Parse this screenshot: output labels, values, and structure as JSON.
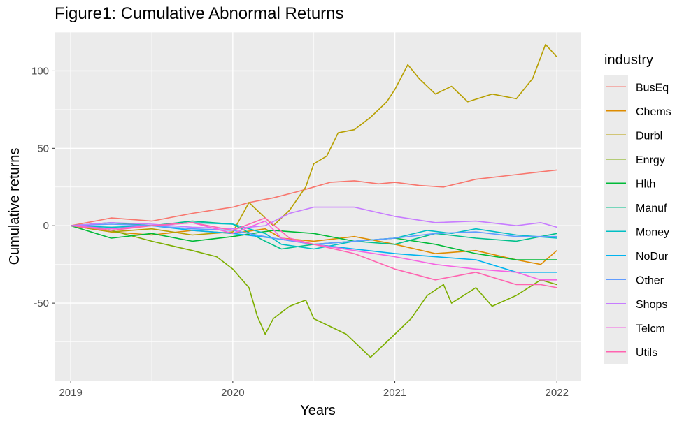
{
  "chart_data": {
    "type": "line",
    "title": "Figure1: Cumulative Abnormal Returns",
    "xlabel": "Years",
    "ylabel": "Cumulative returns",
    "xlim": [
      2018.9,
      2022.15
    ],
    "ylim": [
      -100,
      125
    ],
    "x_ticks": [
      2019,
      2020,
      2021,
      2022
    ],
    "x_tick_labels": [
      "2019",
      "2020",
      "2021",
      "2022"
    ],
    "y_ticks": [
      -50,
      0,
      50,
      100
    ],
    "y_tick_labels": [
      "-50",
      "0",
      "50",
      "100"
    ],
    "grid": true,
    "legend": {
      "title": "industry",
      "position": "right"
    },
    "background": "#ebebeb",
    "series": [
      {
        "name": "BusEq",
        "color": "#f8766d",
        "x": [
          2019,
          2019.25,
          2019.5,
          2019.75,
          2020,
          2020.1,
          2020.25,
          2020.4,
          2020.5,
          2020.6,
          2020.75,
          2020.9,
          2021,
          2021.15,
          2021.3,
          2021.5,
          2021.75,
          2022
        ],
        "y": [
          0,
          5,
          3,
          8,
          12,
          15,
          18,
          22,
          25,
          28,
          29,
          27,
          28,
          26,
          25,
          30,
          33,
          36
        ]
      },
      {
        "name": "Chems",
        "color": "#de8c00",
        "x": [
          2019,
          2019.25,
          2019.5,
          2019.75,
          2020,
          2020.2,
          2020.3,
          2020.5,
          2020.75,
          2021,
          2021.25,
          2021.5,
          2021.75,
          2021.9,
          2022
        ],
        "y": [
          0,
          -4,
          -6,
          -3,
          -5,
          -2,
          -8,
          -10,
          -7,
          -12,
          -18,
          -16,
          -22,
          -25,
          -16
        ]
      },
      {
        "name": "Durbl",
        "color": "#b79f00",
        "x": [
          2019,
          2019.25,
          2019.5,
          2019.75,
          2020,
          2020.1,
          2020.2,
          2020.25,
          2020.35,
          2020.45,
          2020.5,
          2020.58,
          2020.65,
          2020.75,
          2020.85,
          2020.95,
          2021,
          2021.08,
          2021.15,
          2021.25,
          2021.35,
          2021.45,
          2021.6,
          2021.75,
          2021.85,
          2021.93,
          2022
        ],
        "y": [
          0,
          -4,
          -2,
          -6,
          -4,
          15,
          5,
          0,
          10,
          25,
          40,
          45,
          60,
          62,
          70,
          80,
          88,
          104,
          95,
          85,
          90,
          80,
          85,
          82,
          95,
          117,
          109
        ]
      },
      {
        "name": "Enrgy",
        "color": "#7cae00",
        "x": [
          2019,
          2019.25,
          2019.5,
          2019.75,
          2019.9,
          2020,
          2020.1,
          2020.15,
          2020.2,
          2020.25,
          2020.35,
          2020.45,
          2020.5,
          2020.6,
          2020.7,
          2020.85,
          2021,
          2021.1,
          2021.2,
          2021.3,
          2021.35,
          2021.5,
          2021.6,
          2021.75,
          2021.9,
          2022
        ],
        "y": [
          0,
          -3,
          -10,
          -16,
          -20,
          -28,
          -40,
          -58,
          -70,
          -60,
          -52,
          -48,
          -60,
          -65,
          -70,
          -85,
          -70,
          -60,
          -45,
          -38,
          -50,
          -40,
          -52,
          -45,
          -35,
          -38
        ]
      },
      {
        "name": "Hlth",
        "color": "#00ba38",
        "x": [
          2019,
          2019.25,
          2019.5,
          2019.75,
          2020,
          2020.25,
          2020.5,
          2020.75,
          2021,
          2021.25,
          2021.5,
          2021.75,
          2022
        ],
        "y": [
          0,
          -8,
          -5,
          -10,
          -7,
          -3,
          -5,
          -10,
          -8,
          -12,
          -18,
          -22,
          -22
        ]
      },
      {
        "name": "Manuf",
        "color": "#00c08b",
        "x": [
          2019,
          2019.25,
          2019.5,
          2019.75,
          2020,
          2020.2,
          2020.3,
          2020.5,
          2020.75,
          2021,
          2021.25,
          2021.5,
          2021.75,
          2022
        ],
        "y": [
          0,
          2,
          0,
          3,
          1,
          -10,
          -15,
          -12,
          -10,
          -12,
          -5,
          -8,
          -10,
          -5
        ]
      },
      {
        "name": "Money",
        "color": "#00bfc4",
        "x": [
          2019,
          2019.25,
          2019.5,
          2019.75,
          2020,
          2020.2,
          2020.3,
          2020.5,
          2020.75,
          2021,
          2021.2,
          2021.35,
          2021.5,
          2021.75,
          2022
        ],
        "y": [
          0,
          -1,
          0,
          2,
          1,
          -5,
          -12,
          -15,
          -10,
          -8,
          -3,
          -5,
          -2,
          -6,
          -8
        ]
      },
      {
        "name": "NoDur",
        "color": "#00b4f0",
        "x": [
          2019,
          2019.25,
          2019.5,
          2019.75,
          2020,
          2020.25,
          2020.5,
          2020.75,
          2021,
          2021.25,
          2021.5,
          2021.75,
          2022
        ],
        "y": [
          0,
          -2,
          0,
          -3,
          -5,
          -8,
          -12,
          -15,
          -18,
          -20,
          -22,
          -30,
          -30
        ]
      },
      {
        "name": "Other",
        "color": "#619cff",
        "x": [
          2019,
          2019.25,
          2019.5,
          2019.75,
          2020,
          2020.25,
          2020.5,
          2020.75,
          2021,
          2021.25,
          2021.5,
          2021.75,
          2022
        ],
        "y": [
          0,
          1,
          0,
          -2,
          -3,
          -8,
          -12,
          -10,
          -8,
          -5,
          -4,
          -7,
          -7
        ]
      },
      {
        "name": "Shops",
        "color": "#c77cff",
        "x": [
          2019,
          2019.25,
          2019.5,
          2019.75,
          2020,
          2020.2,
          2020.35,
          2020.5,
          2020.75,
          2021,
          2021.25,
          2021.5,
          2021.75,
          2021.9,
          2022
        ],
        "y": [
          0,
          2,
          1,
          -1,
          -2,
          0,
          8,
          12,
          12,
          6,
          2,
          3,
          0,
          2,
          -1
        ]
      },
      {
        "name": "Telcm",
        "color": "#f564e3",
        "x": [
          2019,
          2019.25,
          2019.5,
          2019.75,
          2020,
          2020.2,
          2020.3,
          2020.5,
          2020.75,
          2021,
          2021.25,
          2021.5,
          2021.75,
          2021.9,
          2022
        ],
        "y": [
          0,
          -2,
          0,
          2,
          -5,
          3,
          -8,
          -12,
          -16,
          -20,
          -25,
          -28,
          -30,
          -35,
          -35
        ]
      },
      {
        "name": "Utils",
        "color": "#ff64b0",
        "x": [
          2019,
          2019.25,
          2019.5,
          2019.75,
          2020,
          2020.2,
          2020.35,
          2020.5,
          2020.75,
          2021,
          2021.25,
          2021.5,
          2021.75,
          2021.9,
          2022
        ],
        "y": [
          0,
          -3,
          0,
          2,
          -3,
          5,
          -8,
          -12,
          -18,
          -28,
          -35,
          -30,
          -38,
          -38,
          -40
        ]
      }
    ]
  }
}
